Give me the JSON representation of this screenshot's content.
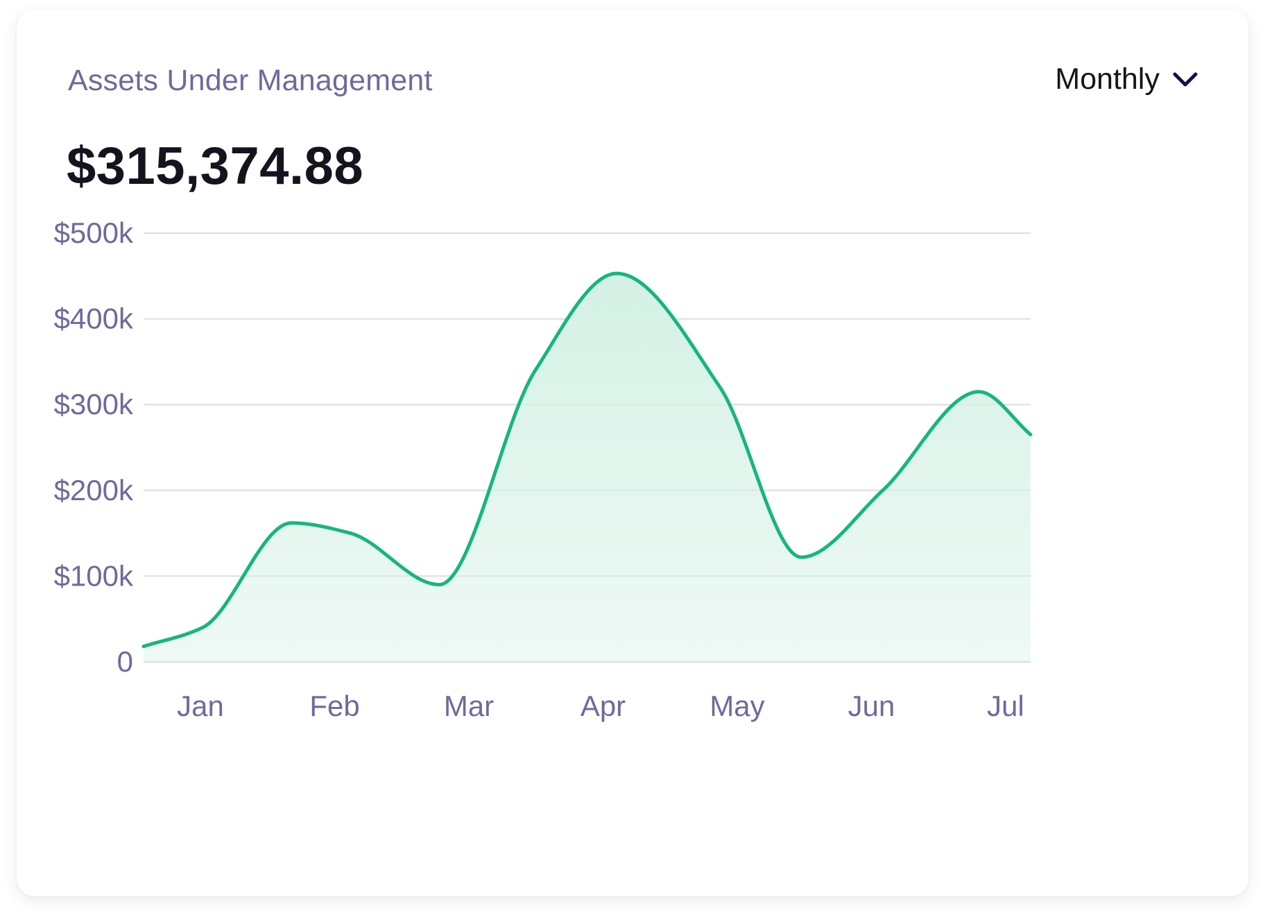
{
  "card": {
    "title": "Assets Under Management",
    "value": "$315,374.88",
    "period": {
      "selected": "Monthly",
      "icon": "chevron-down-icon"
    }
  },
  "colors": {
    "line": "#16b67d",
    "fill": "#d4f1e5",
    "grid": "#dcdce8",
    "axis_text": "#6e6a9c",
    "chevron": "#150f4a"
  },
  "chart_data": {
    "type": "area",
    "title": "",
    "xlabel": "",
    "ylabel": "",
    "categories": [
      "Jan",
      "Feb",
      "Mar",
      "Apr",
      "May",
      "Jun",
      "Jul"
    ],
    "y_ticks": [
      "0",
      "$100k",
      "$200k",
      "$300k",
      "$400k",
      "$500k"
    ],
    "ylim": [
      0,
      500000
    ],
    "grid": true,
    "smooth": true,
    "legend": "none",
    "series": [
      {
        "x": [
          0,
          0.4,
          1.0,
          1.4,
          2.0,
          2.65,
          3.2,
          3.9,
          4.45,
          5.0,
          5.65,
          6.0
        ],
        "values": [
          18000,
          40000,
          162000,
          150000,
          90000,
          340000,
          453000,
          320000,
          122000,
          200000,
          315000,
          265000
        ]
      }
    ]
  }
}
